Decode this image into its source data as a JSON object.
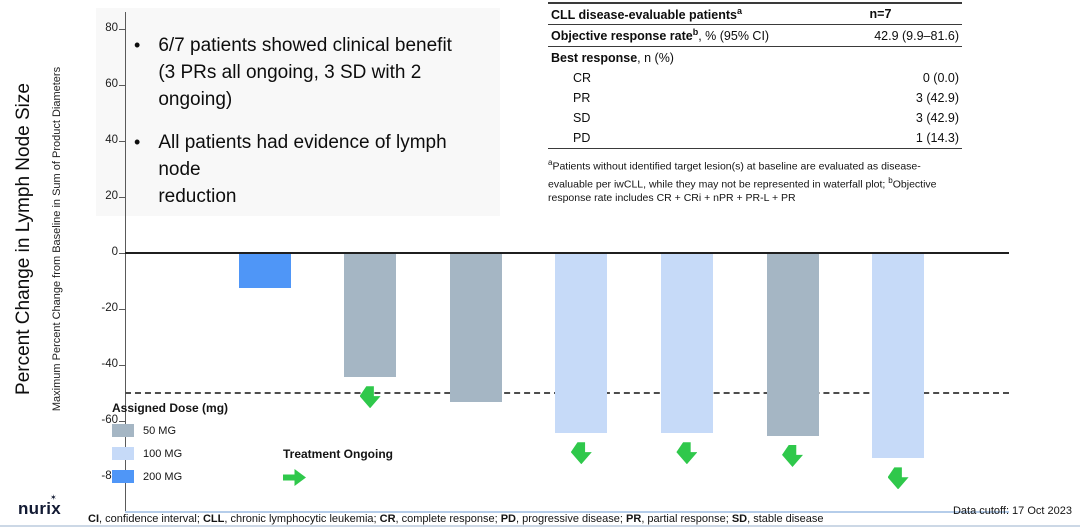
{
  "bullets": [
    "6/7 patients showed clinical benefit\n(3 PRs all ongoing, 3 SD with 2 ongoing)",
    "All patients had evidence of lymph node\nreduction"
  ],
  "table": {
    "header": {
      "label": "CLL disease-evaluable patients",
      "sup": "a",
      "value": "n=7"
    },
    "orr": {
      "label": "Objective response rate",
      "sup": "b",
      "label_rest": ", % (95% CI)",
      "value": "42.9 (9.9–81.6)"
    },
    "best_response": {
      "bold": "Best response",
      "rest": ", n (%)"
    },
    "rows": [
      {
        "label": "CR",
        "value": "0 (0.0)"
      },
      {
        "label": "PR",
        "value": "3 (42.9)"
      },
      {
        "label": "SD",
        "value": "3 (42.9)"
      },
      {
        "label": "PD",
        "value": "1 (14.3)"
      }
    ],
    "footnote": {
      "sup_a": "a",
      "text_a": "Patients without identified target lesion(s) at baseline are evaluated as disease-evaluable per iwCLL, while they may not be represented in waterfall plot; ",
      "sup_b": "b",
      "text_b": "Objective response rate includes CR + CRi + nPR + PR-L + PR"
    }
  },
  "chart_data": {
    "type": "bar",
    "ylabel": "Percent Change in Lymph Node Size",
    "ylabel_secondary": "Maximum Percent Change from Baseline in Sum of Product Diameters",
    "ylim": [
      -90,
      85
    ],
    "yticks": [
      80,
      60,
      40,
      20,
      0,
      -20,
      -40,
      -60,
      -80
    ],
    "reference_line_y": -50,
    "grid": false,
    "series": [
      {
        "value": -12,
        "dose": "200 MG",
        "treatment_ongoing": false
      },
      {
        "value": -44,
        "dose": "50 MG",
        "treatment_ongoing": true
      },
      {
        "value": -53,
        "dose": "50 MG",
        "treatment_ongoing": false
      },
      {
        "value": -64,
        "dose": "100 MG",
        "treatment_ongoing": true
      },
      {
        "value": -64,
        "dose": "100 MG",
        "treatment_ongoing": true
      },
      {
        "value": -65,
        "dose": "50 MG",
        "treatment_ongoing": true
      },
      {
        "value": -73,
        "dose": "100 MG",
        "treatment_ongoing": true
      }
    ],
    "dose_colors": {
      "50 MG": "#a5b6c4",
      "100 MG": "#c6daf8",
      "200 MG": "#4f96f7"
    },
    "ongoing_arrow_color": "#2fc84b"
  },
  "legend": {
    "title": "Assigned Dose (mg)",
    "items": [
      {
        "label": "50 MG",
        "color": "#a5b6c4"
      },
      {
        "label": "100 MG",
        "color": "#c6daf8"
      },
      {
        "label": "200 MG",
        "color": "#4f96f7"
      }
    ],
    "ongoing_label": "Treatment Ongoing"
  },
  "footer": {
    "logo": "nurix",
    "abbreviations": [
      {
        "abbr": "CI",
        "def": ", confidence interval; "
      },
      {
        "abbr": "CLL",
        "def": ", chronic lymphocytic leukemia; "
      },
      {
        "abbr": "CR",
        "def": ", complete response; "
      },
      {
        "abbr": "PD",
        "def": ", progressive disease; "
      },
      {
        "abbr": "PR",
        "def": ", partial response; "
      },
      {
        "abbr": "SD",
        "def": ", stable disease"
      }
    ],
    "data_cutoff": "Data cutoff: 17 Oct 2023"
  }
}
